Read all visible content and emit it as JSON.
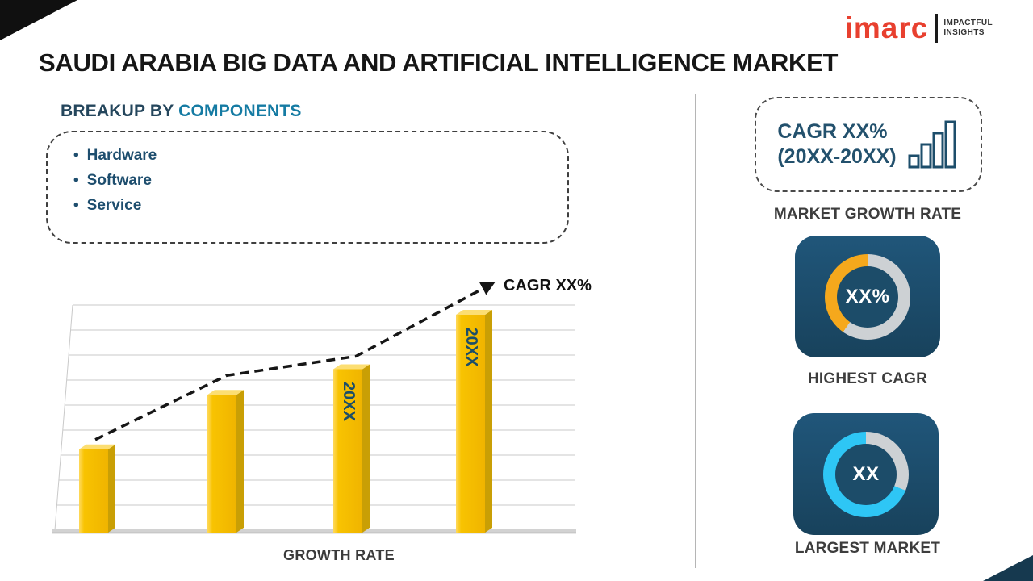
{
  "page": {
    "title": "SAUDI ARABIA BIG DATA AND ARTIFICIAL INTELLIGENCE MARKET"
  },
  "logo": {
    "brand": "imarc",
    "tagline_line1": "IMPACTFUL",
    "tagline_line2": "INSIGHTS"
  },
  "breakup": {
    "heading_prefix": "BREAKUP BY ",
    "heading_accent": "COMPONENTS",
    "items": [
      "Hardware",
      "Software",
      "Service"
    ]
  },
  "chart_data": {
    "type": "bar",
    "title": "",
    "categories": [
      "",
      "",
      "20XX",
      "20XX"
    ],
    "values": [
      26,
      43,
      51,
      68
    ],
    "xlabel": "GROWTH RATE",
    "ylim": [
      0,
      100
    ],
    "grid": true,
    "legend": false,
    "trend_annotation": "CAGR XX%",
    "bar_color": "#F8C301"
  },
  "cards": {
    "growth_rate": {
      "line1": "CAGR XX%",
      "line2": "(20XX-20XX)",
      "caption": "MARKET GROWTH RATE"
    },
    "highest_cagr": {
      "value": "XX%",
      "caption": "HIGHEST CAGR"
    },
    "largest_market": {
      "value": "XX",
      "caption": "LARGEST MARKET"
    }
  },
  "colors": {
    "navy": "#1C4E68",
    "accent_teal": "#157BA3",
    "bar_gold": "#F8C301",
    "donut_gold": "#F5A81C",
    "donut_cyan": "#2EC6F5",
    "donut_gray": "#CDD1D4",
    "logo_red": "#E8402F"
  }
}
